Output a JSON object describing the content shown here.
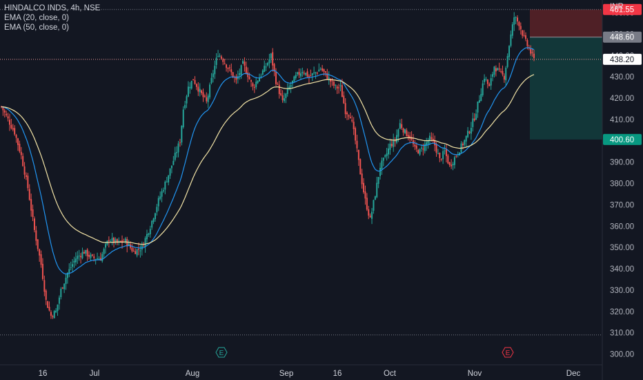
{
  "header": {
    "symbol": "HINDALCO INDS, 4h, NSE",
    "ema20": "EMA (20, close, 0)",
    "ema50": "EMA (50, close, 0)",
    "currency": "INR"
  },
  "price_labels": {
    "stop": "461.55",
    "entry": "448.60",
    "last": "438.20",
    "target": "400.60"
  },
  "colors": {
    "background": "#131722",
    "up": "#26a69a",
    "down": "#ef5350",
    "ema20": "#2196f3",
    "ema50": "#f5e6a8",
    "stop_zone": "#5b2227",
    "target_zone": "#133b3c"
  },
  "events": [
    {
      "label": "E",
      "x": "Aug",
      "kind": "earnings-past"
    },
    {
      "label": "E",
      "x": "Nov",
      "kind": "earnings-upcoming"
    }
  ],
  "chart_data": {
    "type": "candlestick",
    "title": "HINDALCO INDS, 4h, NSE",
    "ylabel": "INR",
    "ylim": [
      295,
      466
    ],
    "y_ticks": [
      300,
      310,
      320,
      330,
      340,
      350,
      360,
      370,
      380,
      390,
      400,
      410,
      420,
      430,
      440,
      450,
      460
    ],
    "x_ticks": [
      "16",
      "Jul",
      "Aug",
      "Sep",
      "16",
      "Oct",
      "Nov",
      "Dec"
    ],
    "grid": false,
    "levels": {
      "stop": 461.55,
      "entry": 448.6,
      "last": 438.2,
      "target": 400.6,
      "range_low": 309
    },
    "anchors": [
      [
        0,
        416
      ],
      [
        4,
        410
      ],
      [
        8,
        404
      ],
      [
        12,
        393
      ],
      [
        16,
        378
      ],
      [
        20,
        358
      ],
      [
        24,
        342
      ],
      [
        27,
        325
      ],
      [
        30,
        318
      ],
      [
        33,
        320
      ],
      [
        36,
        330
      ],
      [
        40,
        338
      ],
      [
        45,
        345
      ],
      [
        50,
        348
      ],
      [
        55,
        345
      ],
      [
        60,
        345
      ],
      [
        65,
        354
      ],
      [
        70,
        352
      ],
      [
        75,
        353
      ],
      [
        80,
        348
      ],
      [
        85,
        350
      ],
      [
        90,
        360
      ],
      [
        95,
        372
      ],
      [
        100,
        382
      ],
      [
        105,
        393
      ],
      [
        108,
        400
      ],
      [
        110,
        415
      ],
      [
        113,
        425
      ],
      [
        116,
        429
      ],
      [
        120,
        423
      ],
      [
        124,
        418
      ],
      [
        128,
        432
      ],
      [
        131,
        441
      ],
      [
        134,
        438
      ],
      [
        138,
        433
      ],
      [
        142,
        428
      ],
      [
        146,
        436
      ],
      [
        149,
        431
      ],
      [
        152,
        425
      ],
      [
        156,
        430
      ],
      [
        160,
        435
      ],
      [
        163,
        440
      ],
      [
        166,
        428
      ],
      [
        170,
        418
      ],
      [
        174,
        425
      ],
      [
        178,
        430
      ],
      [
        182,
        433
      ],
      [
        186,
        430
      ],
      [
        190,
        432
      ],
      [
        193,
        434
      ],
      [
        196,
        431
      ],
      [
        199,
        428
      ],
      [
        202,
        425
      ],
      [
        205,
        425
      ],
      [
        208,
        414
      ],
      [
        211,
        412
      ],
      [
        214,
        400
      ],
      [
        217,
        385
      ],
      [
        220,
        372
      ],
      [
        223,
        363
      ],
      [
        226,
        375
      ],
      [
        229,
        388
      ],
      [
        232,
        392
      ],
      [
        235,
        398
      ],
      [
        238,
        400
      ],
      [
        241,
        408
      ],
      [
        244,
        404
      ],
      [
        247,
        402
      ],
      [
        250,
        396
      ],
      [
        253,
        395
      ],
      [
        256,
        398
      ],
      [
        259,
        401
      ],
      [
        262,
        398
      ],
      [
        265,
        391
      ],
      [
        268,
        395
      ],
      [
        271,
        388
      ],
      [
        274,
        392
      ],
      [
        277,
        396
      ],
      [
        280,
        400
      ],
      [
        283,
        405
      ],
      [
        286,
        411
      ],
      [
        289,
        420
      ],
      [
        292,
        430
      ],
      [
        295,
        425
      ],
      [
        298,
        435
      ],
      [
        301,
        432
      ],
      [
        304,
        430
      ],
      [
        307,
        445
      ],
      [
        310,
        458
      ],
      [
        313,
        455
      ],
      [
        316,
        448
      ],
      [
        319,
        443
      ],
      [
        322,
        438
      ]
    ],
    "series": [
      {
        "name": "EMA (20, close, 0)",
        "type": "line"
      },
      {
        "name": "EMA (50, close, 0)",
        "type": "line"
      }
    ]
  }
}
